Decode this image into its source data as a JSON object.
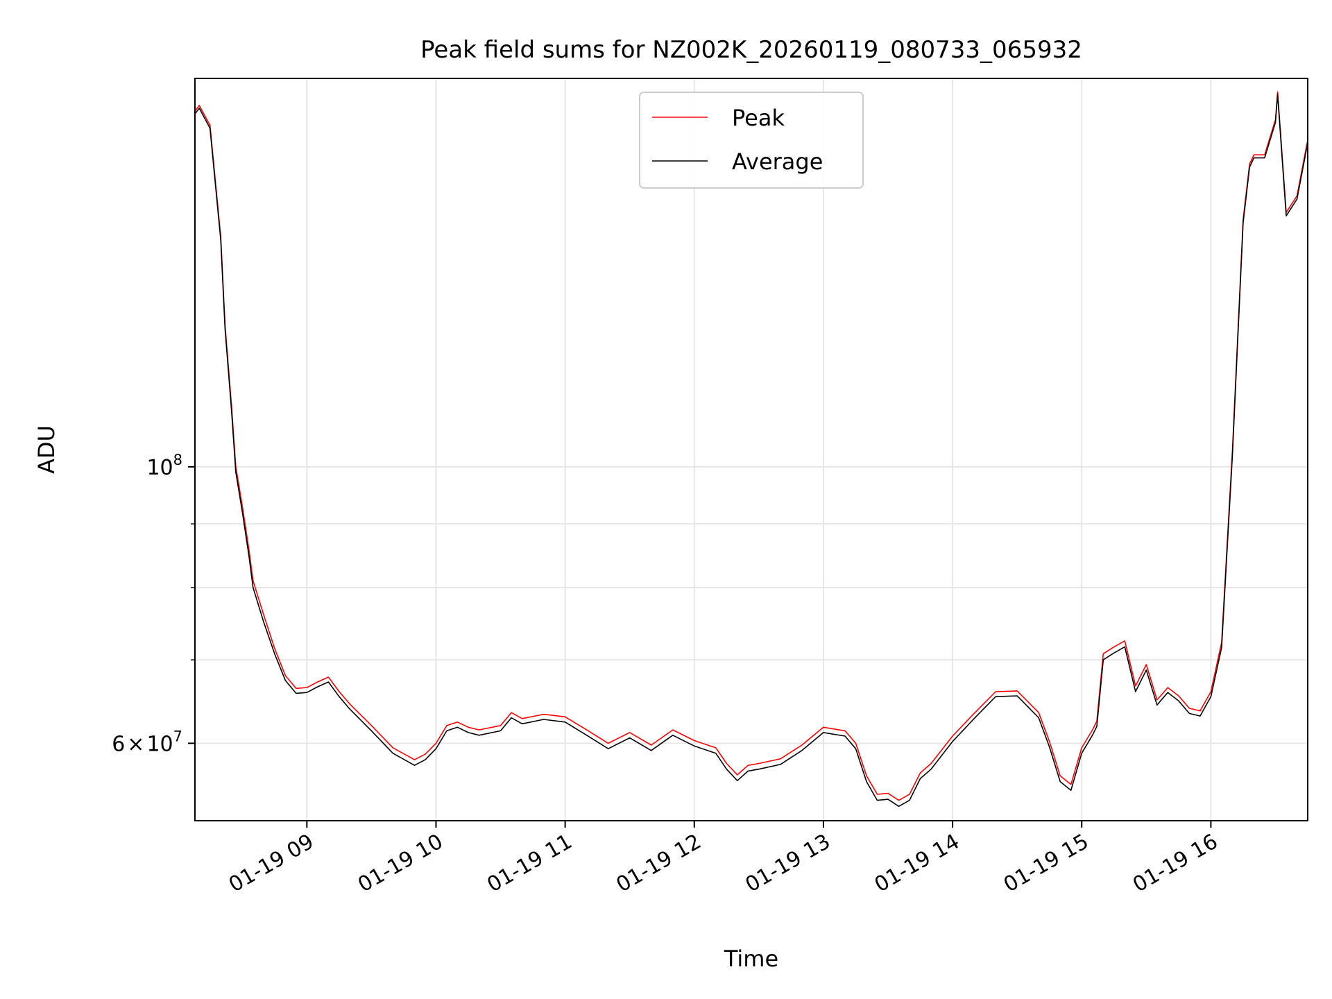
{
  "chart_data": {
    "type": "line",
    "title": "Peak field sums for NZ002K_20260119_080733_065932",
    "xlabel": "Time",
    "ylabel": "ADU",
    "yscale": "log",
    "grid": true,
    "legend_position": "upper center",
    "x_range": [
      "2026-01-19 08:08",
      "2026-01-19 16:45"
    ],
    "y_range": [
      52000000,
      205000000
    ],
    "x_ticks": [
      {
        "value": "2026-01-19 09:00",
        "label": "01-19 09"
      },
      {
        "value": "2026-01-19 10:00",
        "label": "01-19 10"
      },
      {
        "value": "2026-01-19 11:00",
        "label": "01-19 11"
      },
      {
        "value": "2026-01-19 12:00",
        "label": "01-19 12"
      },
      {
        "value": "2026-01-19 13:00",
        "label": "01-19 13"
      },
      {
        "value": "2026-01-19 14:00",
        "label": "01-19 14"
      },
      {
        "value": "2026-01-19 15:00",
        "label": "01-19 15"
      },
      {
        "value": "2026-01-19 16:00",
        "label": "01-19 16"
      }
    ],
    "y_ticks_major": [
      {
        "value": 100000000,
        "base": "10",
        "exp": "8"
      },
      {
        "value": 60000000,
        "mant": "6",
        "times": "×",
        "base": "10",
        "exp": "7"
      }
    ],
    "y_ticks_minor": [
      70000000,
      80000000,
      90000000
    ],
    "x": [
      "08:08",
      "08:10",
      "08:15",
      "08:20",
      "08:22",
      "08:25",
      "08:27",
      "08:30",
      "08:33",
      "08:35",
      "08:40",
      "08:45",
      "08:50",
      "08:55",
      "09:00",
      "09:05",
      "09:10",
      "09:15",
      "09:20",
      "09:30",
      "09:40",
      "09:50",
      "09:55",
      "10:00",
      "10:05",
      "10:10",
      "10:15",
      "10:20",
      "10:30",
      "10:35",
      "10:40",
      "10:50",
      "11:00",
      "11:10",
      "11:20",
      "11:30",
      "11:40",
      "11:50",
      "12:00",
      "12:10",
      "12:15",
      "12:20",
      "12:25",
      "12:30",
      "12:40",
      "12:50",
      "13:00",
      "13:10",
      "13:15",
      "13:20",
      "13:25",
      "13:30",
      "13:35",
      "13:40",
      "13:45",
      "13:50",
      "14:00",
      "14:10",
      "14:20",
      "14:30",
      "14:40",
      "14:45",
      "14:50",
      "14:55",
      "15:00",
      "15:05",
      "15:07",
      "15:10",
      "15:15",
      "15:20",
      "15:25",
      "15:30",
      "15:35",
      "15:40",
      "15:45",
      "15:50",
      "15:55",
      "16:00",
      "16:05",
      "16:10",
      "16:15",
      "16:18",
      "16:20",
      "16:25",
      "16:30",
      "16:31",
      "16:35",
      "16:40",
      "16:45"
    ],
    "series": [
      {
        "name": "Peak",
        "color": "#ff0000",
        "values": [
          193000000,
          195000000,
          188000000,
          153000000,
          130000000,
          112000000,
          100000000,
          93000000,
          86000000,
          81000000,
          76000000,
          71500000,
          68000000,
          66400000,
          66500000,
          67200000,
          67800000,
          66000000,
          64500000,
          62000000,
          59500000,
          58200000,
          58800000,
          60000000,
          62000000,
          62400000,
          61800000,
          61500000,
          62000000,
          63500000,
          62800000,
          63300000,
          63000000,
          61500000,
          60000000,
          61200000,
          59800000,
          61500000,
          60300000,
          59500000,
          57800000,
          56600000,
          57600000,
          57800000,
          58300000,
          59800000,
          61800000,
          61400000,
          60000000,
          56500000,
          54600000,
          54700000,
          54000000,
          54600000,
          56800000,
          57800000,
          60800000,
          63400000,
          66000000,
          66100000,
          63500000,
          60200000,
          56500000,
          55600000,
          59500000,
          61500000,
          62500000,
          70800000,
          71700000,
          72500000,
          66700000,
          69400000,
          65000000,
          66500000,
          65500000,
          64000000,
          63700000,
          66000000,
          72300000,
          103000000,
          158000000,
          175000000,
          178000000,
          178000000,
          190000000,
          200000000,
          160000000,
          165000000,
          183000000
        ]
      },
      {
        "name": "Average",
        "color": "#000000",
        "values": [
          192000000,
          194000000,
          187000000,
          152000000,
          129000000,
          111000000,
          99000000,
          92000000,
          85000000,
          80000000,
          75000000,
          70800000,
          67400000,
          65800000,
          65900000,
          66600000,
          67200000,
          65400000,
          63900000,
          61400000,
          58900000,
          57600000,
          58200000,
          59400000,
          61400000,
          61800000,
          61200000,
          60900000,
          61400000,
          62900000,
          62200000,
          62700000,
          62400000,
          60900000,
          59400000,
          60600000,
          59200000,
          60900000,
          59700000,
          58900000,
          57200000,
          56000000,
          57000000,
          57200000,
          57700000,
          59200000,
          61200000,
          60800000,
          59400000,
          55900000,
          54000000,
          54100000,
          53400000,
          54000000,
          56200000,
          57200000,
          60200000,
          62800000,
          65400000,
          65500000,
          62900000,
          59600000,
          55900000,
          55000000,
          58900000,
          60900000,
          61900000,
          70000000,
          70900000,
          71700000,
          66000000,
          68700000,
          64400000,
          65900000,
          64900000,
          63400000,
          63100000,
          65400000,
          71600000,
          102000000,
          157000000,
          174000000,
          177000000,
          177000000,
          189000000,
          199000000,
          159000000,
          164000000,
          182000000
        ]
      }
    ]
  }
}
